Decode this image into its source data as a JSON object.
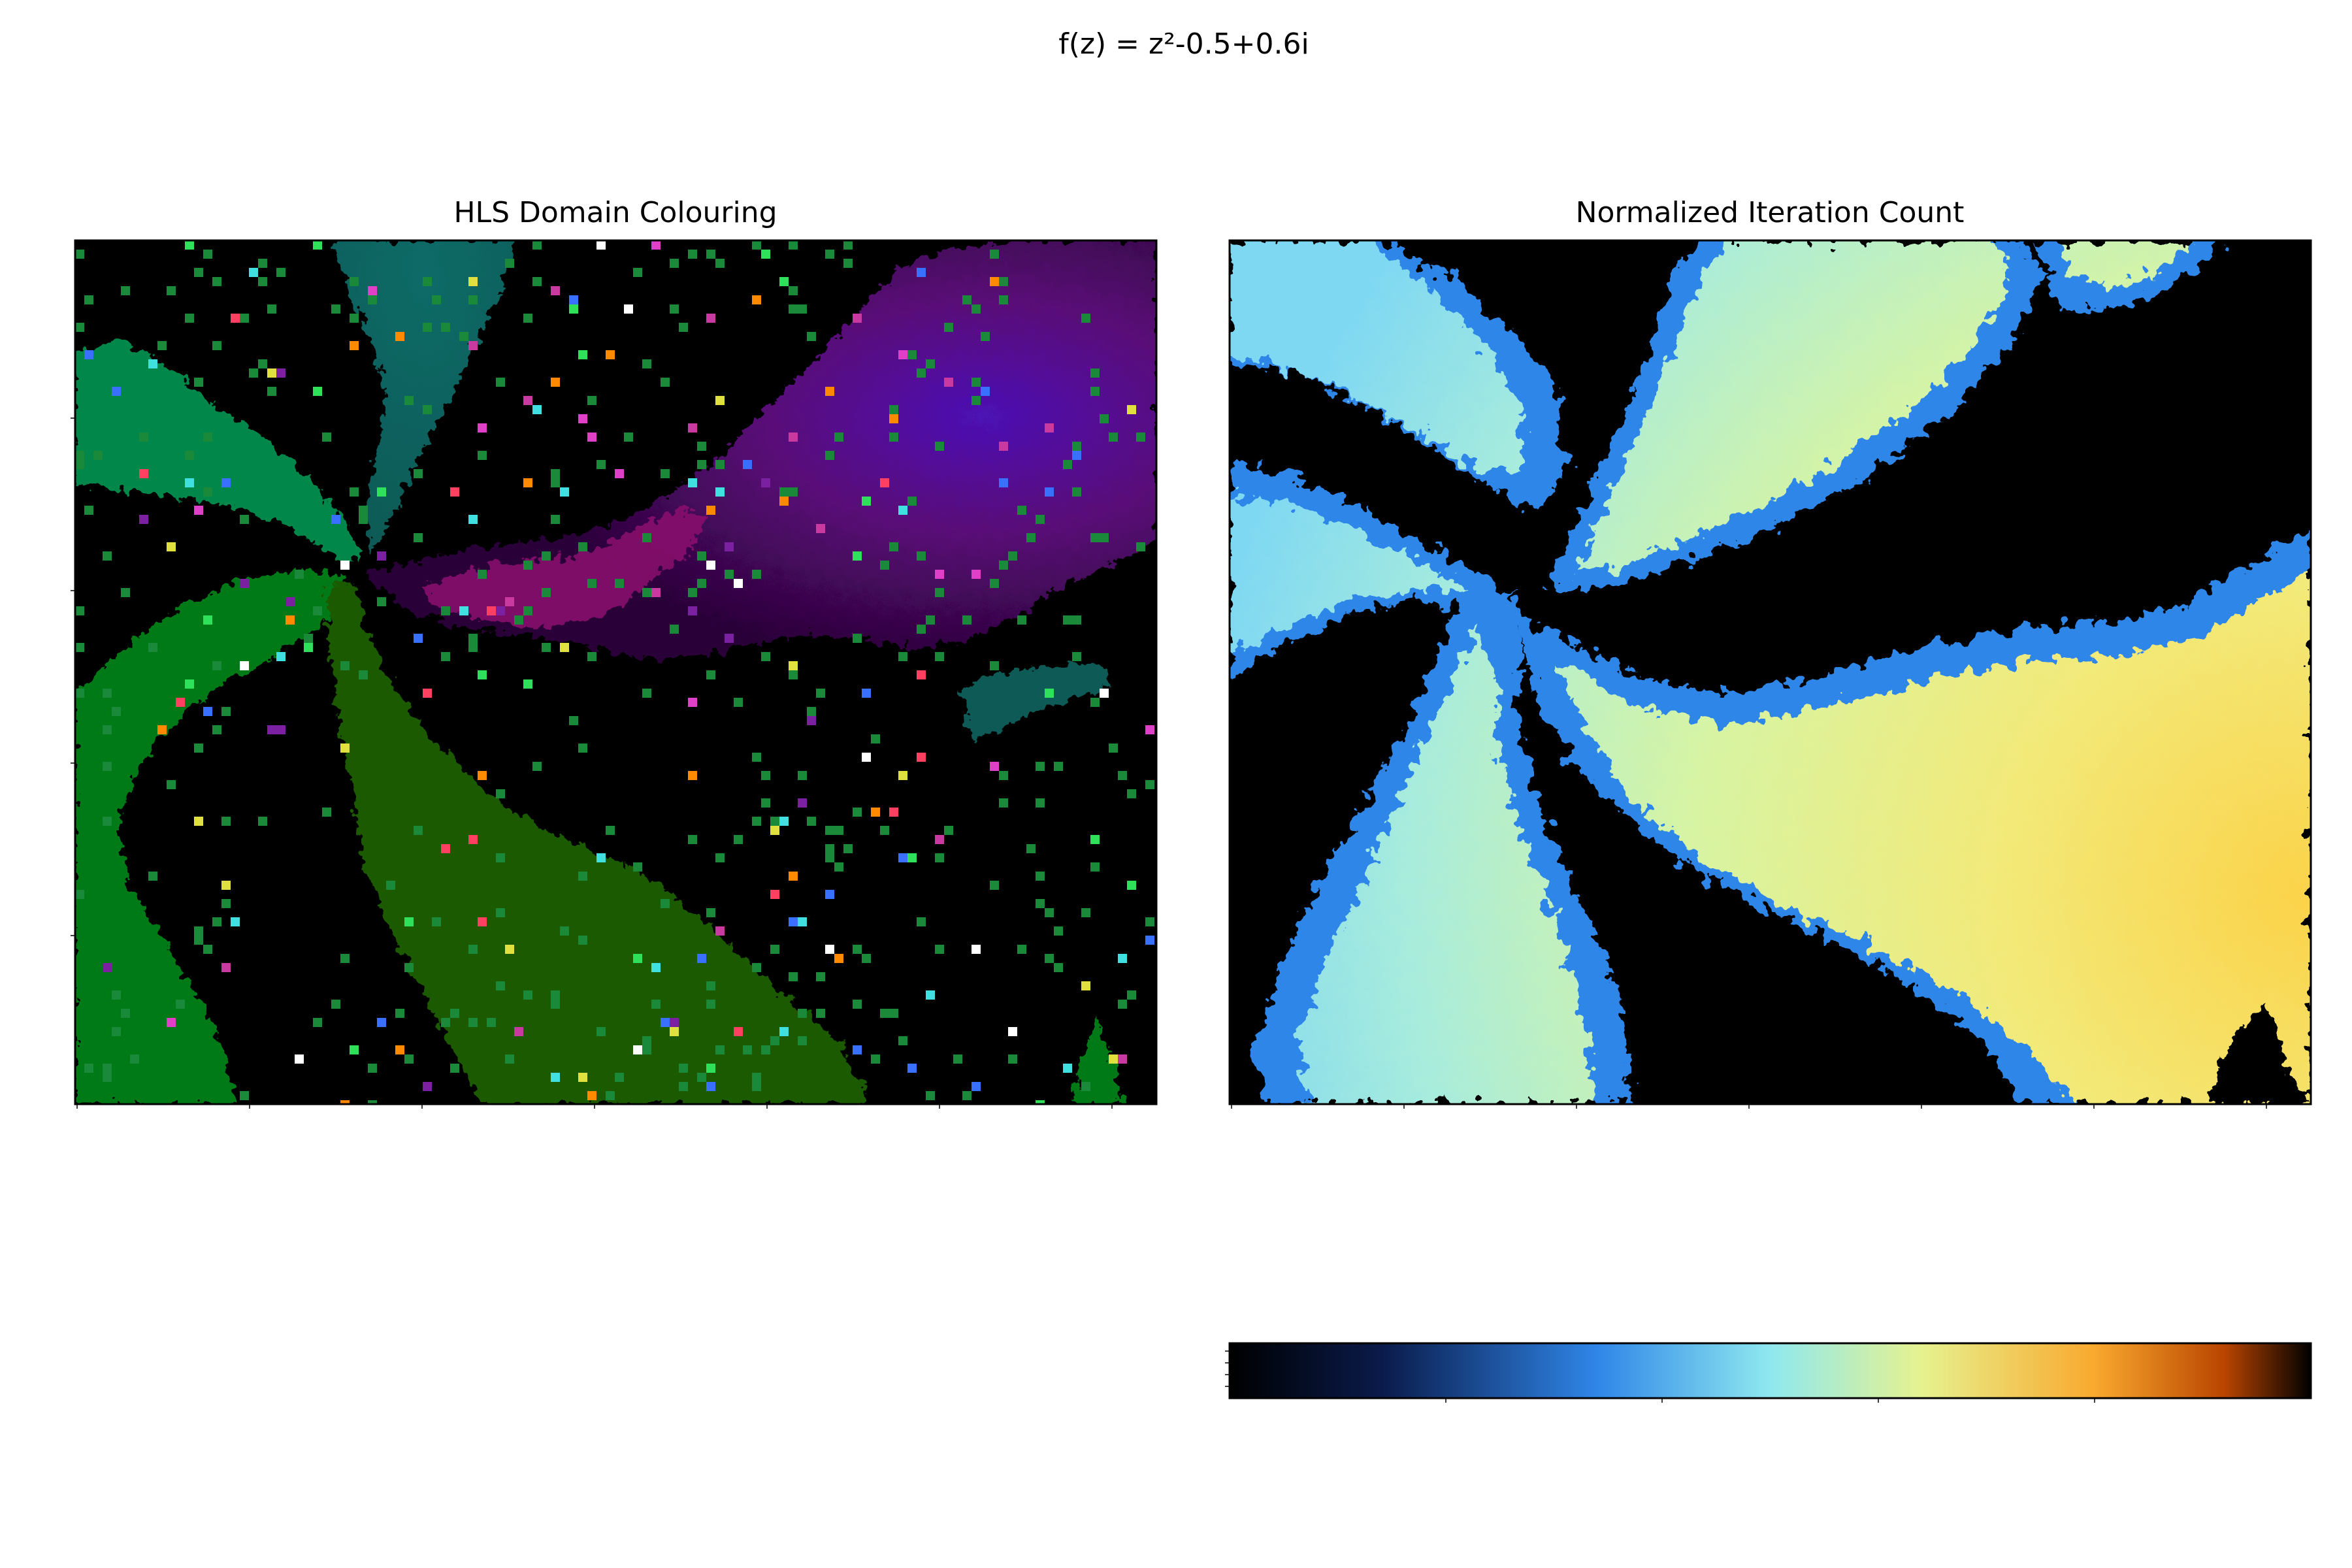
{
  "figure": {
    "suptitle": "f(z) = z²-0.5+0.6i"
  },
  "colors": {
    "background": "#ffffff",
    "inside_set": "#000000",
    "axes_edge": "#000000",
    "hls_seagreen": "#00874a",
    "hls_teal": "#0a5a56",
    "hls_forest": "#1e5a00",
    "hls_green": "#007a18",
    "hls_purple": "#5a0a78",
    "hls_violet": "#4c12b4",
    "hls_magenta": "#8c0a6e",
    "colormap_stops": [
      "#000000",
      "#0a1a4a",
      "#2f86e8",
      "#8fe8ef",
      "#e6f28f",
      "#f9a92e",
      "#b94500",
      "#000000"
    ]
  },
  "chart_data": [
    {
      "type": "heatmap",
      "title": "HLS Domain Colouring",
      "xlabel": "",
      "ylabel": "",
      "grid": false,
      "colorbar": false,
      "encoding": "HLS of the final iterate (hue = argument, lightness = modulus); escaped-early points render black"
    },
    {
      "type": "heatmap",
      "title": "Normalized Iteration Count",
      "xlabel": "",
      "ylabel": "",
      "grid": false,
      "colorbar": true,
      "colorbar_orientation": "horizontal",
      "colorbar_location": "below",
      "colormap": "black-blue-cyan-yellow-orange-black",
      "encoding": "smooth (normalized) escape iteration count; bounded points black"
    }
  ]
}
